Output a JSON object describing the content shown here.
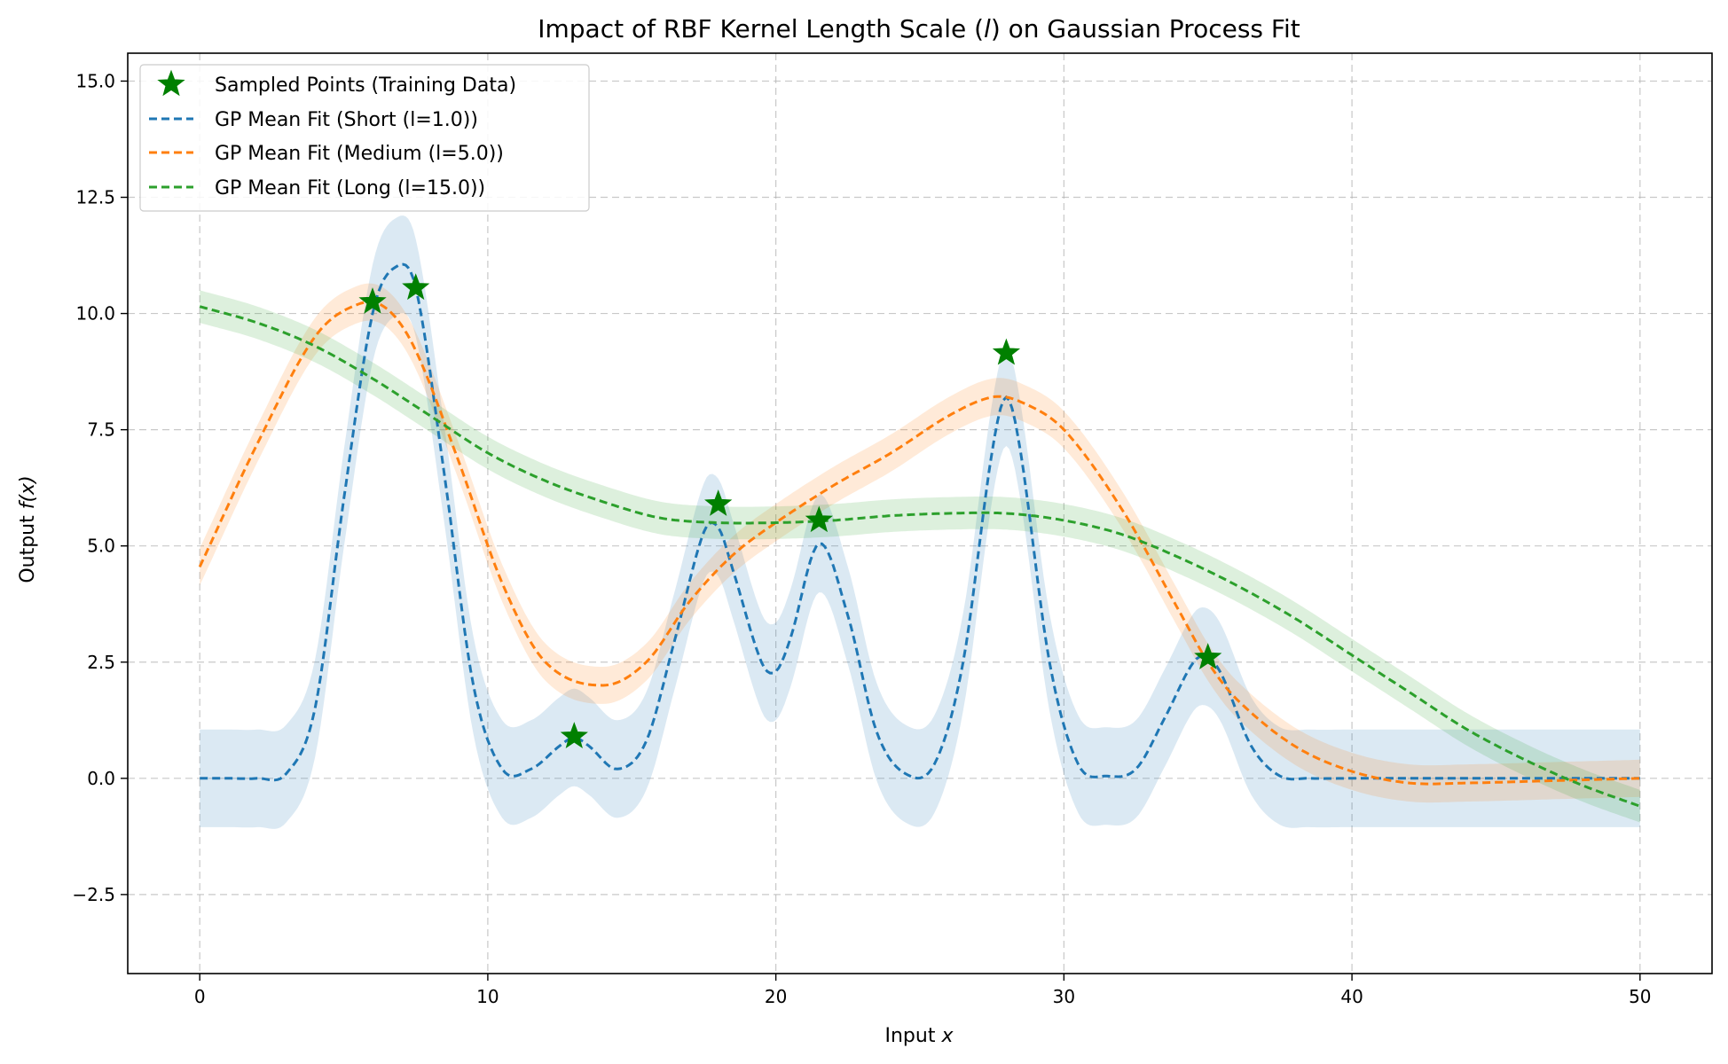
{
  "chart_data": {
    "type": "line",
    "title": "Impact of RBF Kernel Length Scale (",
    "title_var": "l",
    "title_end": ") on Gaussian Process Fit",
    "xlabel": "Input ",
    "xlabel_var": "x",
    "ylabel": "Output ",
    "ylabel_var": "f(x)",
    "xlim": [
      -2.5,
      52.5
    ],
    "ylim": [
      -4.2,
      15.6
    ],
    "xticks": [
      0,
      10,
      20,
      30,
      40,
      50
    ],
    "yticks": [
      -2.5,
      0.0,
      2.5,
      5.0,
      7.5,
      10.0,
      12.5,
      15.0
    ],
    "ytick_labels": [
      "−2.5",
      "0.0",
      "2.5",
      "5.0",
      "7.5",
      "10.0",
      "12.5",
      "15.0"
    ],
    "grid": true,
    "legend_position": "top-left",
    "sampled_points": {
      "name": "Sampled Points (Training Data)",
      "color": "#008000",
      "marker": "star",
      "x": [
        6.0,
        7.5,
        13.0,
        18.0,
        21.5,
        28.0,
        35.0
      ],
      "y": [
        10.25,
        10.55,
        0.9,
        5.9,
        5.55,
        9.15,
        2.6
      ]
    },
    "series": [
      {
        "name": "GP Mean Fit (Short (l=1.0))",
        "color": "#1f77b4",
        "band": 1.05,
        "x": [
          0,
          1,
          2,
          3,
          4,
          5,
          6,
          6.8,
          7.5,
          8.5,
          9.5,
          10.5,
          11.5,
          12.5,
          13,
          13.5,
          14.5,
          15.5,
          16.5,
          17.5,
          18,
          18.5,
          19.5,
          20,
          20.5,
          21.5,
          22.5,
          23.5,
          24.5,
          25.5,
          26.5,
          27.5,
          28,
          28.5,
          29.5,
          30.5,
          31.5,
          32.5,
          33.5,
          34.5,
          35,
          35.5,
          36.5,
          37.5,
          38.5,
          40,
          45,
          50
        ],
        "y": [
          0,
          0,
          0,
          0.1,
          1.5,
          6.0,
          10.0,
          11.0,
          10.55,
          6.5,
          2.0,
          0.2,
          0.2,
          0.7,
          0.88,
          0.7,
          0.2,
          0.8,
          3.0,
          5.3,
          5.4,
          4.5,
          2.5,
          2.3,
          3.0,
          5.05,
          3.5,
          1.0,
          0.1,
          0.3,
          2.5,
          7.0,
          8.2,
          7.0,
          2.5,
          0.3,
          0.05,
          0.2,
          1.3,
          2.5,
          2.6,
          2.2,
          0.7,
          0.05,
          0,
          0,
          0,
          0
        ]
      },
      {
        "name": "GP Mean Fit (Medium (l=5.0))",
        "color": "#ff7f0e",
        "band": 0.4,
        "x": [
          0,
          2,
          4,
          5.5,
          6.5,
          7.5,
          9,
          10.5,
          12,
          14,
          15.5,
          17,
          18.5,
          20,
          22,
          24,
          26,
          27.5,
          28.5,
          30,
          32,
          34,
          35,
          36,
          38,
          40,
          42,
          44,
          47,
          50
        ],
        "y": [
          4.55,
          7.2,
          9.5,
          10.2,
          10.1,
          9.2,
          6.8,
          4.2,
          2.5,
          2.0,
          2.5,
          3.8,
          4.8,
          5.5,
          6.3,
          7.0,
          7.8,
          8.2,
          8.1,
          7.5,
          5.8,
          3.6,
          2.5,
          1.7,
          0.7,
          0.15,
          -0.1,
          -0.1,
          -0.05,
          0
        ]
      },
      {
        "name": "GP Mean Fit (Long (l=15.0))",
        "color": "#2ca02c",
        "band": 0.35,
        "x": [
          0,
          2,
          4,
          6,
          8,
          10,
          12,
          14,
          16,
          18,
          20,
          22,
          24,
          26,
          28,
          30,
          32,
          34,
          36,
          38,
          40,
          42,
          44,
          46,
          48,
          50
        ],
        "y": [
          10.15,
          9.8,
          9.3,
          8.6,
          7.8,
          7.0,
          6.4,
          5.95,
          5.6,
          5.5,
          5.5,
          5.55,
          5.65,
          5.7,
          5.7,
          5.55,
          5.25,
          4.75,
          4.15,
          3.45,
          2.65,
          1.85,
          1.05,
          0.4,
          -0.15,
          -0.6
        ]
      }
    ]
  }
}
